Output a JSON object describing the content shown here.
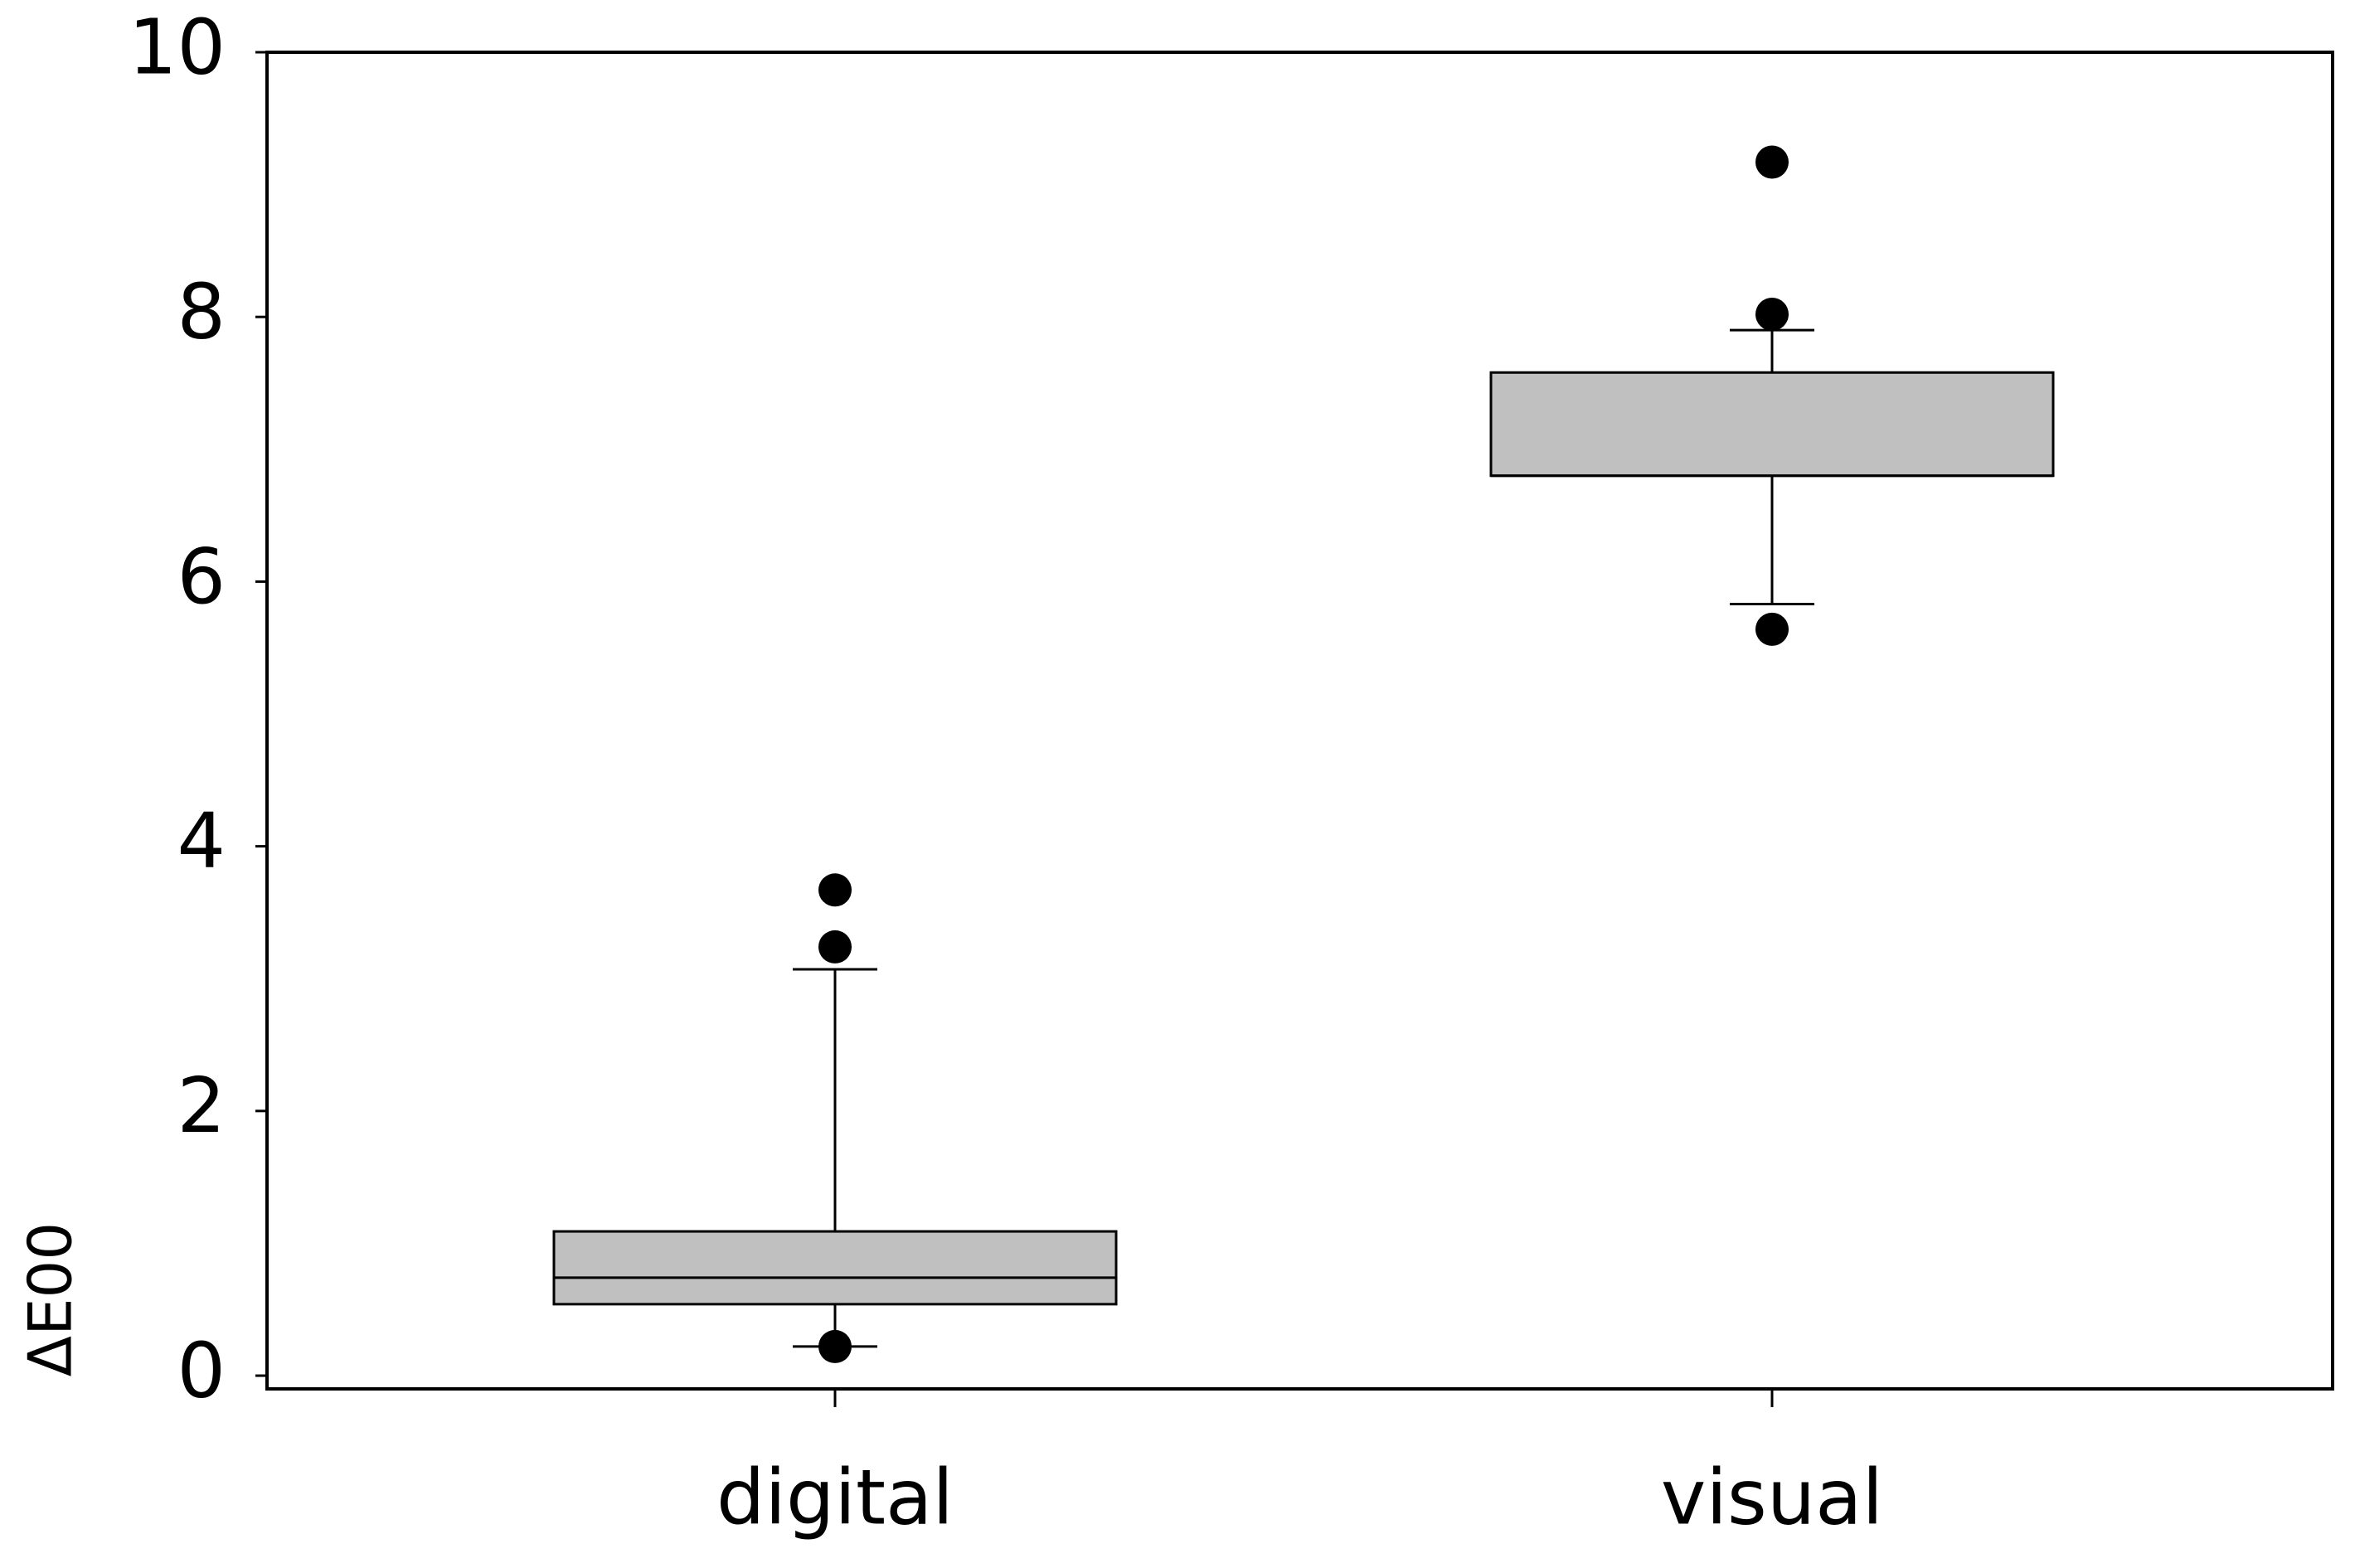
{
  "chart_data": {
    "type": "box",
    "y_label": "ΔE00",
    "categories": [
      "digital",
      "visual"
    ],
    "boxes": [
      {
        "q1": 0.54,
        "median": 0.74,
        "q3": 1.09,
        "whislo": 0.22,
        "whishi": 3.07,
        "fliers": [
          3.67,
          3.24,
          0.22
        ]
      },
      {
        "q1": 6.8,
        "median": 6.8,
        "q3": 7.58,
        "whislo": 5.83,
        "whishi": 7.9,
        "fliers": [
          9.17,
          8.02,
          5.64
        ]
      }
    ],
    "color": "#c0c0c0",
    "ylim": [
      -0.1,
      10
    ],
    "yticks": [
      0,
      2,
      4,
      6,
      8,
      10
    ],
    "grid": false
  }
}
